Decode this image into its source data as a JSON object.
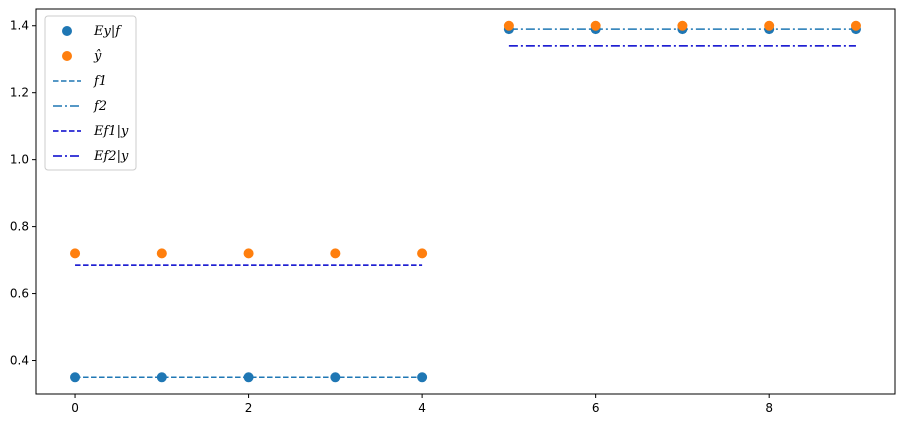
{
  "chart_data": {
    "type": "scatter",
    "title": "",
    "xlabel": "",
    "ylabel": "",
    "xlim": [
      -0.45,
      9.45
    ],
    "ylim": [
      0.3,
      1.45
    ],
    "xticks": [
      0,
      2,
      4,
      6,
      8
    ],
    "xtick_labels": [
      "0",
      "2",
      "4",
      "6",
      "8"
    ],
    "yticks": [
      0.4,
      0.6,
      0.8,
      1.0,
      1.2,
      1.4
    ],
    "ytick_labels": [
      "0.4",
      "0.6",
      "0.8",
      "1.0",
      "1.2",
      "1.4"
    ],
    "grid": false,
    "legend_position": "top-left",
    "colors": {
      "blue": "#1f77b4",
      "orange": "#ff7f0e",
      "darkblue": "#0000cc"
    },
    "series": [
      {
        "name": "Ey|f",
        "kind": "scatter",
        "color": "#1f77b4",
        "x": [
          0,
          1,
          2,
          3,
          4,
          5,
          6,
          7,
          8,
          9
        ],
        "y": [
          0.35,
          0.35,
          0.35,
          0.35,
          0.35,
          1.39,
          1.39,
          1.39,
          1.39,
          1.39
        ]
      },
      {
        "name": "ŷ",
        "kind": "scatter",
        "color": "#ff7f0e",
        "x": [
          0,
          1,
          2,
          3,
          4,
          5,
          6,
          7,
          8,
          9
        ],
        "y": [
          0.72,
          0.72,
          0.72,
          0.72,
          0.72,
          1.4,
          1.4,
          1.4,
          1.4,
          1.4
        ]
      },
      {
        "name": "f1",
        "kind": "line",
        "dash": "dashed",
        "color": "#1f77b4",
        "x": [
          0,
          4
        ],
        "y": [
          0.35,
          0.35
        ]
      },
      {
        "name": "f2",
        "kind": "line",
        "dash": "dashdot",
        "color": "#1f77b4",
        "x": [
          5,
          9
        ],
        "y": [
          1.39,
          1.39
        ]
      },
      {
        "name": "Ef1|y",
        "kind": "line",
        "dash": "dashed",
        "color": "#0000cc",
        "x": [
          0,
          4
        ],
        "y": [
          0.685,
          0.685
        ]
      },
      {
        "name": "Ef2|y",
        "kind": "line",
        "dash": "dashdot",
        "color": "#0000cc",
        "x": [
          5,
          9
        ],
        "y": [
          1.34,
          1.34
        ]
      }
    ]
  }
}
